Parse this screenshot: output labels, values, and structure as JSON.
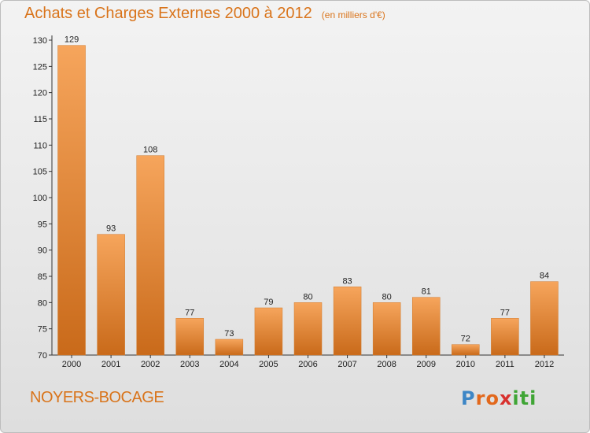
{
  "header": {
    "title": "Achats et Charges Externes 2000 à 2012",
    "unit": "(en milliers d'€)"
  },
  "footer": {
    "commune": "NOYERS-BOCAGE",
    "brand_letters": [
      "P",
      "r",
      "o",
      "x",
      "i",
      "t",
      "i"
    ],
    "brand_colors": [
      "#3d86c6",
      "#e2681c",
      "#e2681c",
      "#d8312e",
      "#3fa535",
      "#3fa535",
      "#3fa535"
    ]
  },
  "colors": {
    "bar_light": "#f6a55c",
    "bar_dark": "#c96a1a",
    "text_accent": "#d9741b"
  },
  "chart_data": {
    "type": "bar",
    "categories": [
      "2000",
      "2001",
      "2002",
      "2003",
      "2004",
      "2005",
      "2006",
      "2007",
      "2008",
      "2009",
      "2010",
      "2011",
      "2012"
    ],
    "values": [
      129,
      93,
      108,
      77,
      73,
      79,
      80,
      83,
      80,
      81,
      72,
      77,
      84
    ],
    "yticks": [
      70,
      75,
      80,
      85,
      90,
      95,
      100,
      105,
      110,
      115,
      120,
      125,
      130
    ],
    "ylim": [
      70,
      130
    ],
    "grid": false
  }
}
